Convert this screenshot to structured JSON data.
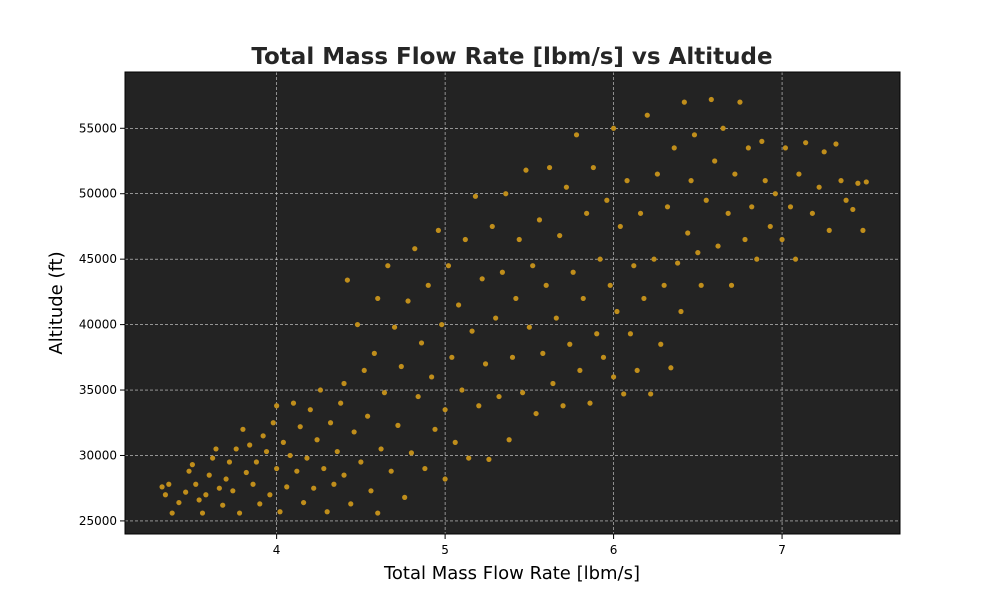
{
  "chart_data": {
    "type": "scatter",
    "title": "Total Mass Flow Rate [lbm/s] vs Altitude",
    "xlabel": "Total Mass Flow Rate [lbm/s]",
    "ylabel": "Altitude (ft)",
    "xlim": [
      3.1,
      7.7
    ],
    "ylim": [
      24000,
      59300
    ],
    "xticks": [
      4,
      5,
      6,
      7
    ],
    "yticks": [
      25000,
      30000,
      35000,
      40000,
      45000,
      50000,
      55000
    ],
    "grid": true,
    "colors": {
      "point": "#c08e1b",
      "plot_bg": "#232323",
      "grid": "#d8d8d8"
    },
    "series": [
      {
        "points": [
          [
            3.32,
            27600
          ],
          [
            3.34,
            27000
          ],
          [
            3.36,
            27800
          ],
          [
            3.38,
            25600
          ],
          [
            3.42,
            26400
          ],
          [
            3.46,
            27200
          ],
          [
            3.48,
            28800
          ],
          [
            3.5,
            29300
          ],
          [
            3.52,
            27800
          ],
          [
            3.54,
            26600
          ],
          [
            3.56,
            25600
          ],
          [
            3.58,
            27000
          ],
          [
            3.6,
            28500
          ],
          [
            3.62,
            29800
          ],
          [
            3.64,
            30500
          ],
          [
            3.66,
            27500
          ],
          [
            3.68,
            26200
          ],
          [
            3.7,
            28200
          ],
          [
            3.72,
            29500
          ],
          [
            3.74,
            27300
          ],
          [
            3.76,
            30500
          ],
          [
            3.78,
            25600
          ],
          [
            3.8,
            32000
          ],
          [
            3.82,
            28700
          ],
          [
            3.84,
            30800
          ],
          [
            3.86,
            27800
          ],
          [
            3.88,
            29500
          ],
          [
            3.9,
            26300
          ],
          [
            3.92,
            31500
          ],
          [
            3.94,
            30300
          ],
          [
            3.96,
            27000
          ],
          [
            3.98,
            32500
          ],
          [
            4.0,
            29000
          ],
          [
            4.0,
            33800
          ],
          [
            4.02,
            25700
          ],
          [
            4.04,
            31000
          ],
          [
            4.06,
            27600
          ],
          [
            4.08,
            30000
          ],
          [
            4.1,
            34000
          ],
          [
            4.12,
            28800
          ],
          [
            4.14,
            32200
          ],
          [
            4.16,
            26400
          ],
          [
            4.18,
            29800
          ],
          [
            4.2,
            33500
          ],
          [
            4.22,
            27500
          ],
          [
            4.24,
            31200
          ],
          [
            4.26,
            35000
          ],
          [
            4.28,
            29000
          ],
          [
            4.3,
            25700
          ],
          [
            4.32,
            32500
          ],
          [
            4.34,
            27800
          ],
          [
            4.36,
            30300
          ],
          [
            4.38,
            34000
          ],
          [
            4.4,
            28500
          ],
          [
            4.4,
            35500
          ],
          [
            4.42,
            43400
          ],
          [
            4.44,
            26300
          ],
          [
            4.46,
            31800
          ],
          [
            4.48,
            40000
          ],
          [
            4.5,
            29500
          ],
          [
            4.52,
            36500
          ],
          [
            4.54,
            33000
          ],
          [
            4.56,
            27300
          ],
          [
            4.58,
            37800
          ],
          [
            4.6,
            42000
          ],
          [
            4.6,
            25600
          ],
          [
            4.62,
            30500
          ],
          [
            4.64,
            34800
          ],
          [
            4.66,
            44500
          ],
          [
            4.68,
            28800
          ],
          [
            4.7,
            39800
          ],
          [
            4.72,
            32300
          ],
          [
            4.74,
            36800
          ],
          [
            4.76,
            26800
          ],
          [
            4.78,
            41800
          ],
          [
            4.8,
            30200
          ],
          [
            4.82,
            45800
          ],
          [
            4.84,
            34500
          ],
          [
            4.86,
            38600
          ],
          [
            4.88,
            29000
          ],
          [
            4.9,
            43000
          ],
          [
            4.92,
            36000
          ],
          [
            4.94,
            32000
          ],
          [
            4.96,
            47200
          ],
          [
            4.98,
            40000
          ],
          [
            5.0,
            28200
          ],
          [
            5.0,
            33500
          ],
          [
            5.02,
            44500
          ],
          [
            5.04,
            37500
          ],
          [
            5.06,
            31000
          ],
          [
            5.08,
            41500
          ],
          [
            5.1,
            35000
          ],
          [
            5.12,
            46500
          ],
          [
            5.14,
            29800
          ],
          [
            5.16,
            39500
          ],
          [
            5.18,
            49800
          ],
          [
            5.2,
            33800
          ],
          [
            5.22,
            43500
          ],
          [
            5.24,
            37000
          ],
          [
            5.26,
            29700
          ],
          [
            5.28,
            47500
          ],
          [
            5.3,
            40500
          ],
          [
            5.32,
            34500
          ],
          [
            5.34,
            44000
          ],
          [
            5.36,
            50000
          ],
          [
            5.38,
            31200
          ],
          [
            5.4,
            37500
          ],
          [
            5.42,
            42000
          ],
          [
            5.44,
            46500
          ],
          [
            5.46,
            34800
          ],
          [
            5.48,
            51800
          ],
          [
            5.5,
            39800
          ],
          [
            5.52,
            44500
          ],
          [
            5.54,
            33200
          ],
          [
            5.56,
            48000
          ],
          [
            5.58,
            37800
          ],
          [
            5.6,
            43000
          ],
          [
            5.62,
            52000
          ],
          [
            5.64,
            35500
          ],
          [
            5.66,
            40500
          ],
          [
            5.68,
            46800
          ],
          [
            5.7,
            33800
          ],
          [
            5.72,
            50500
          ],
          [
            5.74,
            38500
          ],
          [
            5.76,
            44000
          ],
          [
            5.78,
            54500
          ],
          [
            5.8,
            36500
          ],
          [
            5.82,
            42000
          ],
          [
            5.84,
            48500
          ],
          [
            5.86,
            34000
          ],
          [
            5.88,
            52000
          ],
          [
            5.9,
            39300
          ],
          [
            5.92,
            45000
          ],
          [
            5.94,
            37500
          ],
          [
            5.96,
            49500
          ],
          [
            5.98,
            43000
          ],
          [
            6.0,
            55000
          ],
          [
            6.0,
            36000
          ],
          [
            6.02,
            41000
          ],
          [
            6.04,
            47500
          ],
          [
            6.06,
            34700
          ],
          [
            6.08,
            51000
          ],
          [
            6.1,
            39300
          ],
          [
            6.12,
            44500
          ],
          [
            6.14,
            36500
          ],
          [
            6.16,
            48500
          ],
          [
            6.18,
            42000
          ],
          [
            6.2,
            56000
          ],
          [
            6.22,
            34700
          ],
          [
            6.24,
            45000
          ],
          [
            6.26,
            51500
          ],
          [
            6.28,
            38500
          ],
          [
            6.3,
            43000
          ],
          [
            6.32,
            49000
          ],
          [
            6.34,
            36700
          ],
          [
            6.36,
            53500
          ],
          [
            6.38,
            44700
          ],
          [
            6.4,
            41000
          ],
          [
            6.42,
            57000
          ],
          [
            6.44,
            47000
          ],
          [
            6.46,
            51000
          ],
          [
            6.48,
            54500
          ],
          [
            6.5,
            45500
          ],
          [
            6.52,
            43000
          ],
          [
            6.55,
            49500
          ],
          [
            6.58,
            57200
          ],
          [
            6.6,
            52500
          ],
          [
            6.62,
            46000
          ],
          [
            6.65,
            55000
          ],
          [
            6.68,
            48500
          ],
          [
            6.7,
            43000
          ],
          [
            6.72,
            51500
          ],
          [
            6.75,
            57000
          ],
          [
            6.78,
            46500
          ],
          [
            6.8,
            53500
          ],
          [
            6.82,
            49000
          ],
          [
            6.85,
            45000
          ],
          [
            6.88,
            54000
          ],
          [
            6.9,
            51000
          ],
          [
            6.93,
            47500
          ],
          [
            6.96,
            50000
          ],
          [
            7.0,
            46500
          ],
          [
            7.02,
            53500
          ],
          [
            7.05,
            49000
          ],
          [
            7.08,
            45000
          ],
          [
            7.1,
            51500
          ],
          [
            7.14,
            53900
          ],
          [
            7.18,
            48500
          ],
          [
            7.22,
            50500
          ],
          [
            7.25,
            53200
          ],
          [
            7.28,
            47200
          ],
          [
            7.32,
            53800
          ],
          [
            7.35,
            51000
          ],
          [
            7.38,
            49500
          ],
          [
            7.42,
            48800
          ],
          [
            7.45,
            50800
          ],
          [
            7.48,
            47200
          ],
          [
            7.5,
            50900
          ]
        ]
      }
    ]
  }
}
